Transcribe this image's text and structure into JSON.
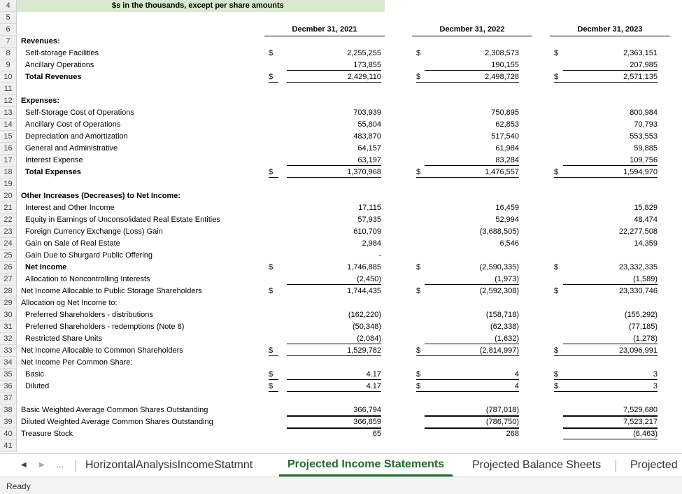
{
  "banner": "$s in the thousands, except per share amounts",
  "headers": [
    "Decmber 31, 2021",
    "Decmber 31, 2022",
    "Decmber 31, 2023"
  ],
  "row_numbers": [
    "4",
    "5",
    "6",
    "7",
    "8",
    "9",
    "10",
    "11",
    "12",
    "13",
    "14",
    "15",
    "16",
    "17",
    "18",
    "19",
    "20",
    "21",
    "22",
    "23",
    "24",
    "25",
    "26",
    "27",
    "28",
    "29",
    "30",
    "31",
    "32",
    "33",
    "34",
    "35",
    "36",
    "37",
    "38",
    "39",
    "40",
    "41"
  ],
  "rows": {
    "r7": {
      "label": "Revenues:"
    },
    "r8": {
      "label": "Self-storage Facilities",
      "v": [
        "2,255,255",
        "2,308,573",
        "2,363,151"
      ]
    },
    "r9": {
      "label": "Ancillary Operations",
      "v": [
        "173,855",
        "190,155",
        "207,985"
      ]
    },
    "r10": {
      "label": "Total Revenues",
      "v": [
        "2,429,110",
        "2,498,728",
        "2,571,135"
      ]
    },
    "r12": {
      "label": "Expenses:"
    },
    "r13": {
      "label": "Self-Storage Cost of Operations",
      "v": [
        "703,939",
        "750,895",
        "800,984"
      ]
    },
    "r14": {
      "label": "Ancillary Cost of Operations",
      "v": [
        "55,804",
        "62,853",
        "70,793"
      ]
    },
    "r15": {
      "label": "Depreciation and Amortization",
      "v": [
        "483,870",
        "517,540",
        "553,553"
      ]
    },
    "r16": {
      "label": "General and Administrative",
      "v": [
        "64,157",
        "61,984",
        "59,885"
      ]
    },
    "r17": {
      "label": "Interest Expense",
      "v": [
        "63,197",
        "83,284",
        "109,756"
      ]
    },
    "r18": {
      "label": "Total Expenses",
      "v": [
        "1,370,968",
        "1,476,557",
        "1,594,970"
      ]
    },
    "r20": {
      "label": "Other Increases (Decreases) to Net Income:"
    },
    "r21": {
      "label": "Interest and Other Income",
      "v": [
        "17,115",
        "16,459",
        "15,829"
      ]
    },
    "r22": {
      "label": "Equity in Earnings of Unconsolidated Real Estate Entities",
      "v": [
        "57,935",
        "52,994",
        "48,474"
      ]
    },
    "r23": {
      "label": "Foreign Currency Exchange (Loss) Gain",
      "v": [
        "610,709",
        "(3,688,505)",
        "22,277,508"
      ]
    },
    "r24": {
      "label": "Gain on Sale of Real Estate",
      "v": [
        "2,984",
        "6,546",
        "14,359"
      ]
    },
    "r25": {
      "label": "Gain Due to Shurgard Public Offering",
      "v": [
        "-",
        "",
        ""
      ]
    },
    "r26": {
      "label": "Net Income",
      "v": [
        "1,746,885",
        "(2,590,335)",
        "23,332,335"
      ]
    },
    "r27": {
      "label": "Allocation to Noncontrolling Interests",
      "v": [
        "(2,450)",
        "(1,973)",
        "(1,589)"
      ]
    },
    "r28": {
      "label": "Net Income Allocable to Public Storage Shareholders",
      "v": [
        "1,744,435",
        "(2,592,308)",
        "23,330,746"
      ]
    },
    "r29": {
      "label": "Allocation og Net Income to:"
    },
    "r30": {
      "label": "Preferred Shareholders - distributions",
      "v": [
        "(162,220)",
        "(158,718)",
        "(155,292)"
      ]
    },
    "r31": {
      "label": "Preferred Shareholders - redemptions (Note 8)",
      "v": [
        "(50,348)",
        "(62,338)",
        "(77,185)"
      ]
    },
    "r32": {
      "label": "Restricted Share Units",
      "v": [
        "(2,084)",
        "(1,632)",
        "(1,278)"
      ]
    },
    "r33": {
      "label": "Net Income Allocable to Common Shareholders",
      "v": [
        "1,529,782",
        "(2,814,997)",
        "23,096,991"
      ]
    },
    "r34": {
      "label": "Net Income Per Common Share:"
    },
    "r35": {
      "label": "Basic",
      "v": [
        "4.17",
        "4",
        "3"
      ]
    },
    "r36": {
      "label": "Diluted",
      "v": [
        "4.17",
        "4",
        "3"
      ]
    },
    "r38": {
      "label": "Basic Weighted Average Common Shares Outstanding",
      "v": [
        "366,794",
        "(787,018)",
        "7,529,680"
      ]
    },
    "r39": {
      "label": "Diluted Weighted Average Common Shares Outstanding",
      "v": [
        "366,859",
        "(786,750)",
        "7,523,217"
      ]
    },
    "r40": {
      "label": "Treasure Stock",
      "v": [
        "65",
        "268",
        "(6,463)"
      ]
    }
  },
  "dollar": "$",
  "tabs": {
    "ellipsis": "...",
    "items": [
      "HorizontalAnalysisIncomeStatmnt",
      "Projected Income Statements",
      "Projected Balance Sheets",
      "Projected"
    ]
  },
  "status": "Ready"
}
